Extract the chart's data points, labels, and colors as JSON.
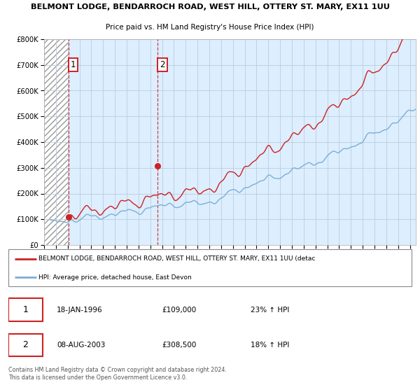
{
  "title1": "BELMONT LODGE, BENDARROCH ROAD, WEST HILL, OTTERY ST. MARY, EX11 1UU",
  "title2": "Price paid vs. HM Land Registry's House Price Index (HPI)",
  "legend_label_red": "BELMONT LODGE, BENDARROCH ROAD, WEST HILL, OTTERY ST. MARY, EX11 1UU (detac",
  "legend_label_blue": "HPI: Average price, detached house, East Devon",
  "footer": "Contains HM Land Registry data © Crown copyright and database right 2024.\nThis data is licensed under the Open Government Licence v3.0.",
  "sale1_date": "18-JAN-1996",
  "sale1_price": 109000,
  "sale1_hpi": "23% ↑ HPI",
  "sale1_x": 1996.05,
  "sale2_date": "08-AUG-2003",
  "sale2_price": 308500,
  "sale2_hpi": "18% ↑ HPI",
  "sale2_x": 2003.6,
  "ylim_max": 800000,
  "xlim_min": 1994,
  "xlim_max": 2025.5,
  "background_color": "#ffffff",
  "plot_bg_color": "#ddeeff",
  "grid_color": "#bbccdd",
  "red_line_color": "#cc2222",
  "blue_line_color": "#7bafd4"
}
